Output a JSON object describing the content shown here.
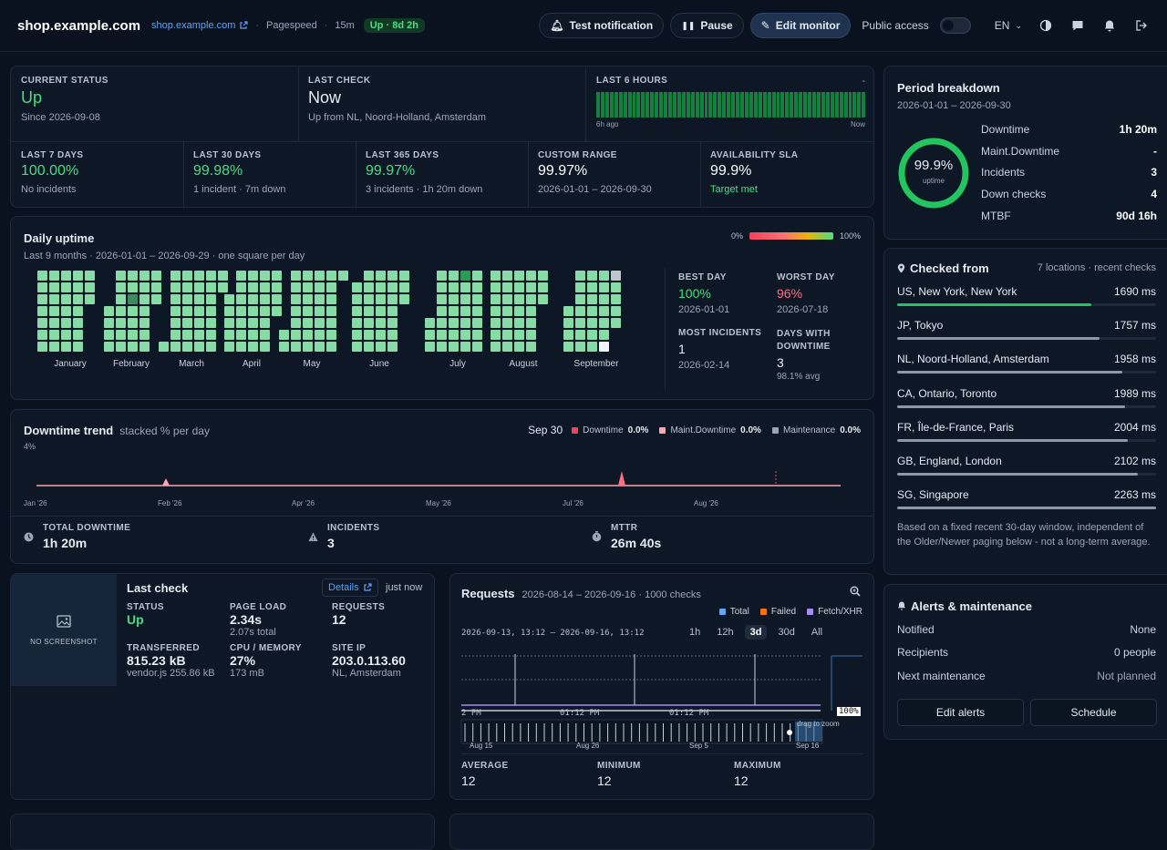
{
  "header": {
    "title": "shop.example.com",
    "link": "shop.example.com",
    "check_type": "Pagespeed",
    "interval": "15m",
    "status_badge": "Up · 8d 2h",
    "test_label": "Test notification",
    "pause_label": "Pause",
    "edit_label": "Edit monitor",
    "public_label": "Public access",
    "lang": "EN"
  },
  "status": {
    "current_label": "CURRENT STATUS",
    "current_value": "Up",
    "current_since": "Since 2026-09-08",
    "last_check_label": "LAST CHECK",
    "last_check_value": "Now",
    "last_check_sub": "Up from NL, Noord-Holland, Amsterdam",
    "six_h_label": "LAST 6 HOURS",
    "six_h_dash": "-",
    "six_h_start": "6h ago",
    "six_h_end": "Now",
    "six_h_checks": [
      1,
      1,
      1,
      1,
      1,
      1,
      1,
      1,
      1,
      1,
      1,
      1,
      1,
      1,
      1,
      1,
      1,
      1,
      1,
      1,
      1,
      1,
      1,
      1,
      1,
      1,
      1,
      1,
      1,
      1,
      1,
      1,
      1,
      1,
      1,
      1,
      1,
      1,
      1,
      1,
      1,
      1,
      1,
      1,
      1,
      1,
      1,
      1,
      1,
      1,
      1,
      1,
      1,
      1,
      1,
      1,
      1,
      1,
      1,
      1
    ],
    "periods": [
      {
        "label": "LAST 7 DAYS",
        "value": "100.00%",
        "sub": "No incidents",
        "color": "#4ade80"
      },
      {
        "label": "LAST 30 DAYS",
        "value": "99.98%",
        "sub": "1 incident · 7m down",
        "color": "#4ade80"
      },
      {
        "label": "LAST 365 DAYS",
        "value": "99.97%",
        "sub": "3 incidents · 1h 20m down",
        "color": "#4ade80"
      },
      {
        "label": "CUSTOM RANGE",
        "value": "99.97%",
        "sub": "2026-01-01 – 2026-09-30",
        "color": "#ffffff"
      },
      {
        "label": "AVAILABILITY SLA",
        "value": "99.9%",
        "sub": "Target met",
        "color": "#ffffff"
      }
    ]
  },
  "daily": {
    "title": "Daily uptime",
    "subtitle": "Last 9 months · 2026-01-01 – 2026-09-29 · one square per day",
    "scale_min": "0%",
    "scale_max": "100%",
    "months": [
      "January",
      "February",
      "March",
      "April",
      "May",
      "June",
      "July",
      "August",
      "September"
    ],
    "best_label": "BEST DAY",
    "best_value": "100%",
    "best_date": "2026-01-01",
    "worst_label": "WORST DAY",
    "worst_value": "96%",
    "worst_date": "2026-07-18",
    "most_label": "MOST INCIDENTS",
    "most_value": "1",
    "most_date": "2026-02-14",
    "dwd_label": "DAYS WITH DOWNTIME",
    "dwd_value": "3",
    "dwd_sub": "98.1% avg"
  },
  "trend": {
    "title": "Downtime trend",
    "subtitle": "stacked % per day",
    "date": "Sep 30",
    "y_top": "4%",
    "legend": [
      {
        "name": "Downtime",
        "value": "0.0%",
        "color": "#f43f5e"
      },
      {
        "name": "Maint.Downtime",
        "value": "0.0%",
        "color": "#fda4af"
      },
      {
        "name": "Maintenance",
        "value": "0.0%",
        "color": "#9ca3af"
      }
    ],
    "xticks": [
      "Jan '26",
      "Feb '26",
      "Apr '26",
      "May '26",
      "Jul '26",
      "Aug '26"
    ],
    "total_label": "TOTAL DOWNTIME",
    "total_value": "1h 20m",
    "inc_label": "INCIDENTS",
    "inc_value": "3",
    "mttr_label": "MTTR",
    "mttr_value": "26m 40s"
  },
  "lastcheck": {
    "title": "Last check",
    "details": "Details",
    "when": "just now",
    "no_screenshot": "NO SCREENSHOT",
    "status_label": "STATUS",
    "status_value": "Up",
    "load_label": "PAGE LOAD",
    "load_value": "2.34s",
    "load_sub": "2.07s total",
    "req_label": "REQUESTS",
    "req_value": "12",
    "tx_label": "TRANSFERRED",
    "tx_value": "815.23 kB",
    "tx_sub": "vendor.js 255.86 kB",
    "cpu_label": "CPU / MEMORY",
    "cpu_value": "27%",
    "cpu_sub": "173 mB",
    "ip_label": "SITE IP",
    "ip_value": "203.0.113.60",
    "ip_sub": "NL, Amsterdam"
  },
  "requests": {
    "title": "Requests",
    "range": "2026-08-14 – 2026-09-16 · 1000 checks",
    "legend": [
      "Total",
      "Failed",
      "Fetch/XHR"
    ],
    "window": "2026-09-13, 13:12 – 2026-09-16, 13:12",
    "ranges": [
      "1h",
      "12h",
      "3d",
      "30d",
      "All"
    ],
    "active_range": "3d",
    "time_ticks": [
      "2 PM",
      "01:12 PM",
      "01:12 PM"
    ],
    "pct_tag": "100%",
    "drag_hint": "drag to zoom",
    "bottom_ticks": [
      "Aug 15",
      "Aug 26",
      "Sep 5",
      "Sep 16"
    ],
    "avg_label": "AVERAGE",
    "avg_value": "12",
    "min_label": "MINIMUM",
    "min_value": "12",
    "max_label": "MAXIMUM",
    "max_value": "12"
  },
  "breakdown": {
    "title": "Period breakdown",
    "range": "2026-01-01 – 2026-09-30",
    "uptime": "99.9%",
    "uptime_sub": "uptime",
    "rows": [
      {
        "k": "Downtime",
        "v": "1h 20m"
      },
      {
        "k": "Maint.Downtime",
        "v": "-"
      },
      {
        "k": "Incidents",
        "v": "3"
      },
      {
        "k": "Down checks",
        "v": "4"
      },
      {
        "k": "MTBF",
        "v": "90d 16h"
      }
    ]
  },
  "locations": {
    "title": "Checked from",
    "summary": "7 locations · recent checks",
    "items": [
      {
        "name": "US, New York, New York",
        "ms": "1690 ms",
        "pct": 75
      },
      {
        "name": "JP, Tokyo",
        "ms": "1757 ms",
        "pct": 78
      },
      {
        "name": "NL, Noord-Holland, Amsterdam",
        "ms": "1958 ms",
        "pct": 87
      },
      {
        "name": "CA, Ontario, Toronto",
        "ms": "1989 ms",
        "pct": 88
      },
      {
        "name": "FR, Île-de-France, Paris",
        "ms": "2004 ms",
        "pct": 89
      },
      {
        "name": "GB, England, London",
        "ms": "2102 ms",
        "pct": 93
      },
      {
        "name": "SG, Singapore",
        "ms": "2263 ms",
        "pct": 100
      }
    ],
    "note": "Based on a fixed recent 30-day window, independent of the Older/Newer paging below - not a long-term average."
  },
  "alerts": {
    "title": "Alerts & maintenance",
    "notified_k": "Notified",
    "notified_v": "None",
    "recip_k": "Recipients",
    "recip_v": "0 people",
    "maint_k": "Next maintenance",
    "maint_v": "Not planned",
    "edit_btn": "Edit alerts",
    "sched_btn": "Schedule"
  }
}
